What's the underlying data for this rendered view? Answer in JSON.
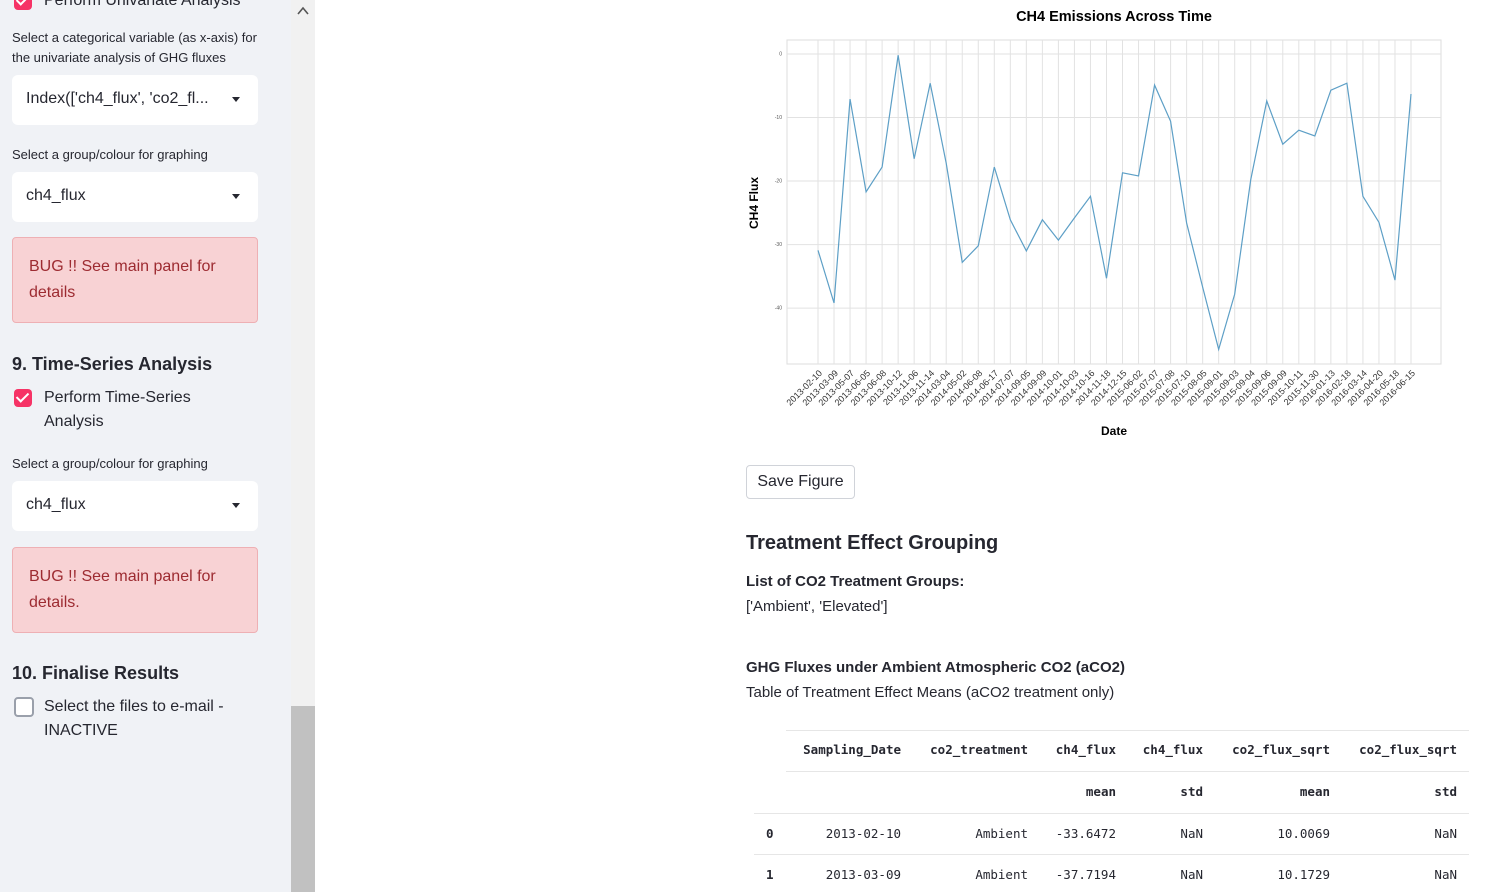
{
  "sidebar": {
    "univariate_checkbox": "Perform Univariate Analysis",
    "univariate_select_label": "Select a categorical variable (as x-axis) for the univariate analysis of GHG fluxes",
    "univariate_select_value": "Index(['ch4_flux', 'co2_fl...",
    "group_select_label_1": "Select a group/colour for graphing",
    "group_select_value_1": "ch4_flux",
    "error_1": "BUG !! See main panel for details",
    "section_9": "9. Time-Series Analysis",
    "timeseries_checkbox": "Perform Time-Series Analysis",
    "group_select_label_2": "Select a group/colour for graphing",
    "group_select_value_2": "ch4_flux",
    "error_2": "BUG !! See main panel for details.",
    "section_10": "10. Finalise Results",
    "email_checkbox": "Select the files to e-mail - INACTIVE"
  },
  "chart_data": {
    "type": "line",
    "title": "CH4 Emissions Across Time",
    "xlabel": "Date",
    "ylabel": "CH4 Flux",
    "categories": [
      "2013-02-10",
      "2013-03-09",
      "2013-05-07",
      "2013-06-05",
      "2013-06-08",
      "2013-10-12",
      "2013-11-06",
      "2013-11-14",
      "2014-03-04",
      "2014-05-02",
      "2014-06-08",
      "2014-06-17",
      "2014-07-07",
      "2014-09-05",
      "2014-09-09",
      "2014-10-01",
      "2014-10-03",
      "2014-10-16",
      "2014-11-18",
      "2014-12-15",
      "2015-06-02",
      "2015-07-07",
      "2015-07-08",
      "2015-07-10",
      "2015-08-05",
      "2015-09-01",
      "2015-09-03",
      "2015-09-04",
      "2015-09-06",
      "2015-09-09",
      "2015-10-11",
      "2015-11-30",
      "2016-01-13",
      "2016-02-18",
      "2016-03-14",
      "2016-04-20",
      "2016-05-18",
      "2016-06-15"
    ],
    "values": [
      -30.9,
      -39.2,
      -7.1,
      -21.7,
      -17.8,
      -0.2,
      -16.5,
      -4.6,
      -17.2,
      -32.8,
      -30.2,
      -17.8,
      -26.1,
      -31.0,
      -26.1,
      -29.3,
      -25.8,
      -22.4,
      -35.3,
      -18.7,
      -19.2,
      -4.9,
      -10.6,
      -26.6,
      -36.7,
      -46.5,
      -37.8,
      -19.8,
      -7.4,
      -14.2,
      -12.0,
      -12.9,
      -5.7,
      -4.6,
      -22.4,
      -26.5,
      -35.6,
      -6.3
    ],
    "color": "#5d9fc6",
    "ylim": [
      -48.8,
      2.2
    ],
    "yticks": [
      0,
      -10,
      -20,
      -30,
      -40
    ],
    "grid": true
  },
  "main": {
    "save_button": "Save Figure",
    "heading": "Treatment Effect Grouping",
    "groups_label": "List of CO2 Treatment Groups:",
    "groups_value": "['Ambient', 'Elevated']",
    "subheading": "GHG Fluxes under Ambient Atmospheric CO2 (aCO2)",
    "caption": "Table of Treatment Effect Means (aCO2 treatment only)"
  },
  "table": {
    "columns": [
      {
        "label": "Sampling_Date"
      },
      {
        "label": "co2_treatment"
      },
      {
        "label": "ch4_flux",
        "stat": "mean"
      },
      {
        "label": "ch4_flux",
        "stat": "std"
      },
      {
        "label": "co2_flux_sqrt",
        "stat": "mean"
      },
      {
        "label": "co2_flux_sqrt",
        "stat": "std"
      }
    ],
    "rows": [
      {
        "index": "0",
        "cells": [
          "2013-02-10",
          "Ambient",
          "-33.6472",
          "NaN",
          "10.0069",
          "NaN"
        ]
      },
      {
        "index": "1",
        "cells": [
          "2013-03-09",
          "Ambient",
          "-37.7194",
          "NaN",
          "10.1729",
          "NaN"
        ]
      }
    ]
  }
}
